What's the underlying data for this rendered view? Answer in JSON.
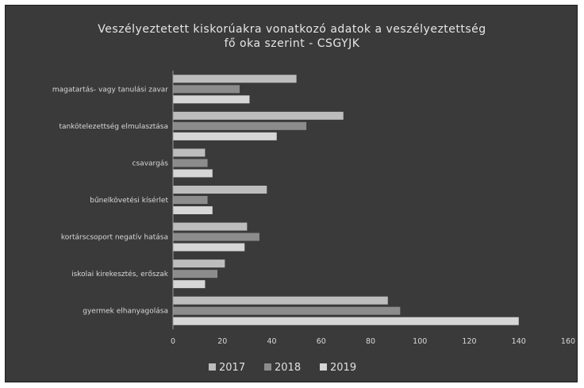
{
  "chart_data": {
    "type": "bar",
    "orientation": "horizontal",
    "title_lines": [
      "Veszélyeztetett kiskorúakra vonatkozó adatok a veszélyeztettség",
      "fő oka szerint - CSGYJK"
    ],
    "categories": [
      "magatartás- vagy tanulási zavar",
      "tankötelezettség elmulasztása",
      "csavargás",
      "bűnelkövetési kísérlet",
      "kortárscsoport negatív hatása",
      "iskolai kirekesztés, erőszak",
      "gyermek elhanyagolása"
    ],
    "series": [
      {
        "name": "2017",
        "color": "#bdbdbd",
        "values": [
          50,
          69,
          13,
          38,
          30,
          21,
          87
        ]
      },
      {
        "name": "2018",
        "color": "#8c8c8c",
        "values": [
          27,
          54,
          14,
          14,
          35,
          18,
          92
        ]
      },
      {
        "name": "2019",
        "color": "#d6d6d6",
        "values": [
          31,
          42,
          16,
          16,
          29,
          13,
          140
        ]
      }
    ],
    "x_ticks": [
      "0",
      "20",
      "40",
      "60",
      "80",
      "100",
      "120",
      "140",
      "160"
    ],
    "xlim": [
      0,
      160
    ],
    "grid": false,
    "legend_position": "bottom"
  }
}
